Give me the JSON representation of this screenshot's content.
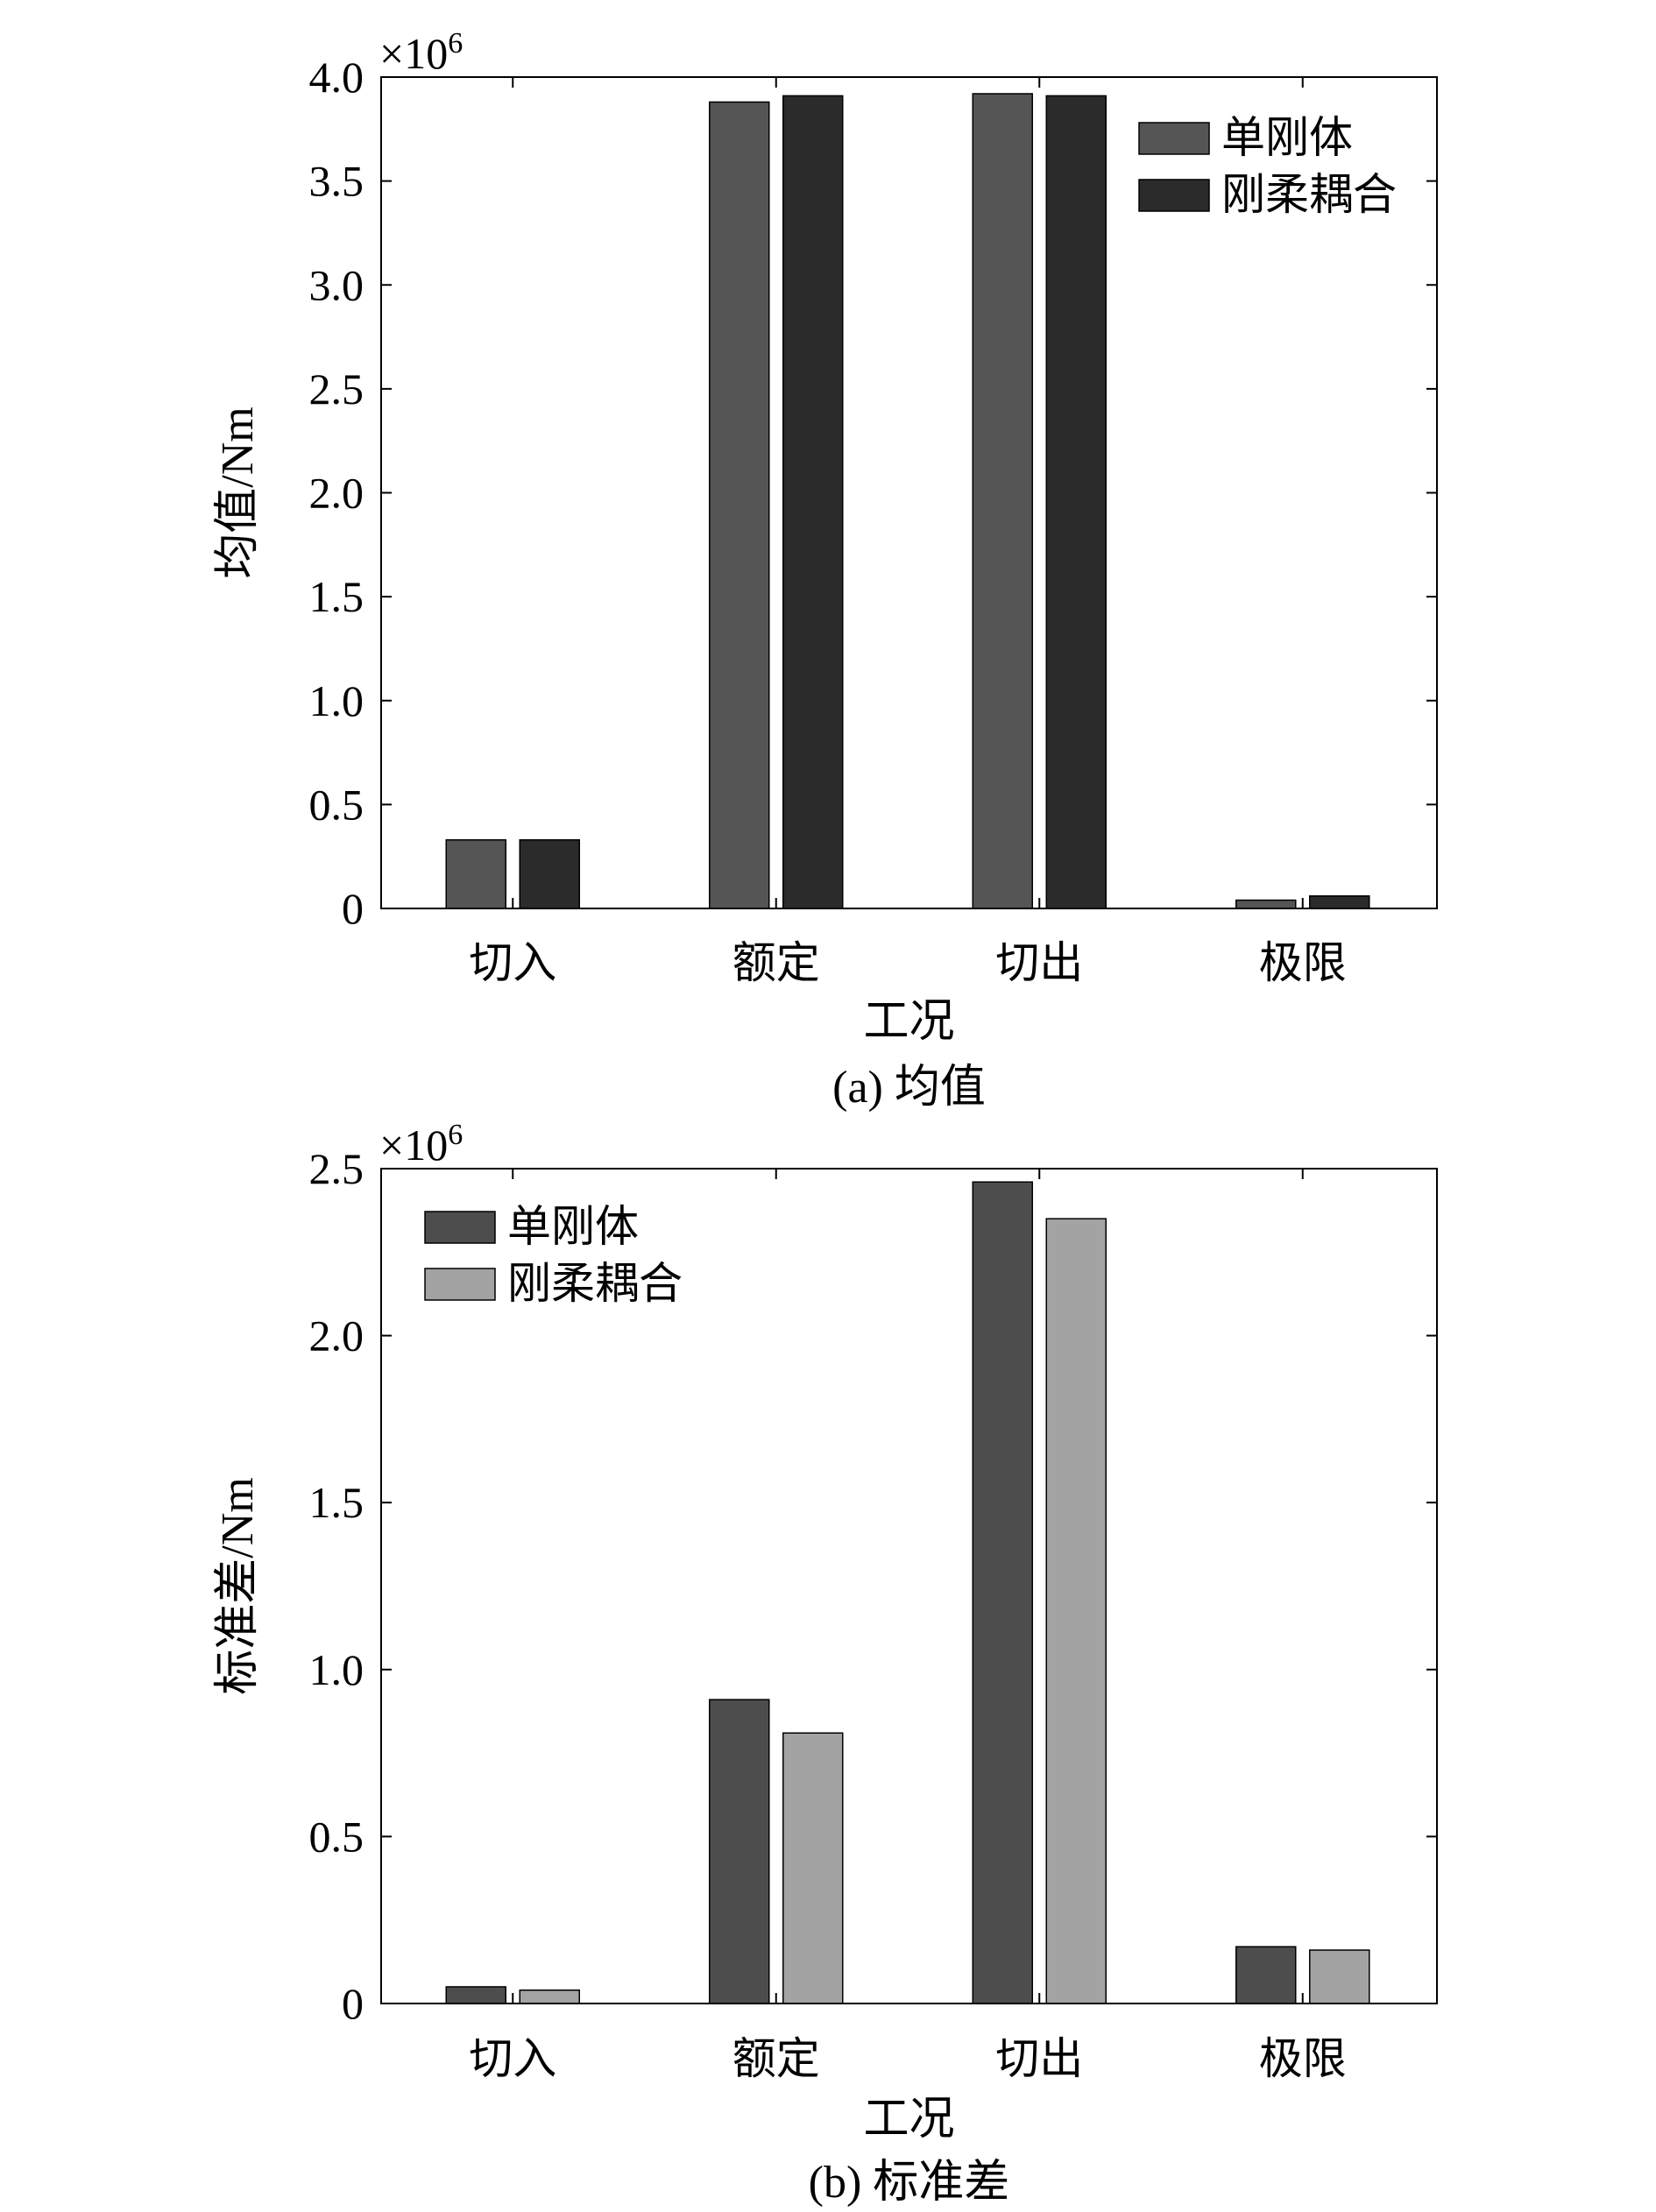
{
  "chart_data": [
    {
      "type": "bar",
      "caption": "(a) 均值",
      "xlabel": "工况",
      "ylabel": "均值/Nm",
      "exponent_base": "×10",
      "exponent_power": "6",
      "categories": [
        "切入",
        "额定",
        "切出",
        "极限"
      ],
      "ylim": [
        0,
        4.0
      ],
      "yticks": [
        0,
        0.5,
        1.0,
        1.5,
        2.0,
        2.5,
        3.0,
        3.5,
        4.0
      ],
      "ytick_labels": [
        "0",
        "0.5",
        "1.0",
        "1.5",
        "2.0",
        "2.5",
        "3.0",
        "3.5",
        "4.0"
      ],
      "legend_position": "top-right",
      "series": [
        {
          "name": "单刚体",
          "color": "#555555",
          "values": [
            0.33,
            3.88,
            3.92,
            0.04
          ]
        },
        {
          "name": "刚柔耦合",
          "color": "#2b2b2b",
          "values": [
            0.33,
            3.91,
            3.91,
            0.06
          ]
        }
      ]
    },
    {
      "type": "bar",
      "caption": "(b) 标准差",
      "xlabel": "工况",
      "ylabel": "标准差/Nm",
      "exponent_base": "×10",
      "exponent_power": "6",
      "categories": [
        "切入",
        "额定",
        "切出",
        "极限"
      ],
      "ylim": [
        0,
        2.5
      ],
      "yticks": [
        0,
        0.5,
        1.0,
        1.5,
        2.0,
        2.5
      ],
      "ytick_labels": [
        "0",
        "0.5",
        "1.0",
        "1.5",
        "2.0",
        "2.5"
      ],
      "legend_position": "top-left",
      "series": [
        {
          "name": "单刚体",
          "color": "#4d4d4d",
          "values": [
            0.05,
            0.91,
            2.46,
            0.17
          ]
        },
        {
          "name": "刚柔耦合",
          "color": "#a3a3a3",
          "values": [
            0.04,
            0.81,
            2.35,
            0.16
          ]
        }
      ]
    }
  ]
}
